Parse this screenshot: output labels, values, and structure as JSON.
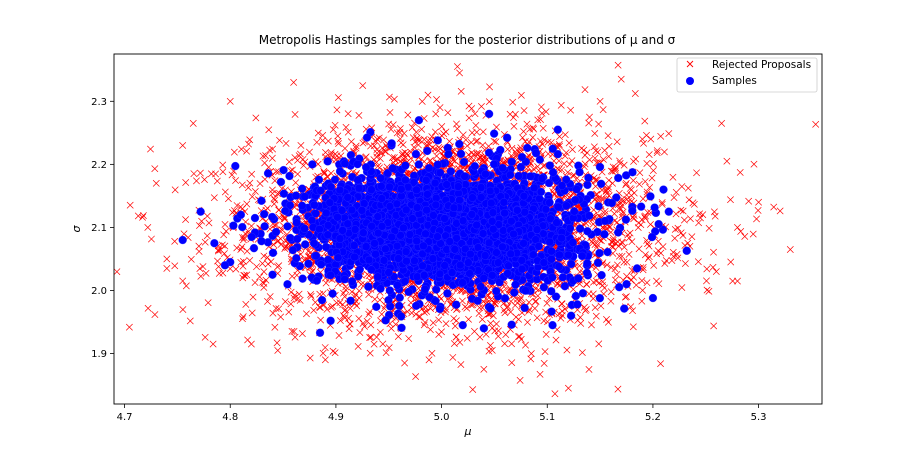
{
  "chart_data": {
    "type": "scatter",
    "title": "Metropolis Hastings samples for the posterior distributions of μ and σ",
    "xlabel": "μ",
    "ylabel": "σ",
    "xlim": [
      4.69,
      5.36
    ],
    "ylim": [
      1.82,
      2.375
    ],
    "xticks": [
      4.7,
      4.8,
      4.9,
      5.0,
      5.1,
      5.2,
      5.3
    ],
    "xtick_labels": [
      "4.7",
      "4.8",
      "4.9",
      "5.0",
      "5.1",
      "5.2",
      "5.3"
    ],
    "yticks": [
      1.9,
      2.0,
      2.1,
      2.2,
      2.3
    ],
    "ytick_labels": [
      "1.9",
      "2.0",
      "2.1",
      "2.2",
      "2.3"
    ],
    "grid": false,
    "legend": "top-right",
    "series": [
      {
        "name": "Rejected Proposals",
        "marker": "x",
        "color": "#ff0000",
        "center": [
          5.01,
          2.1
        ],
        "spread": [
          0.095,
          0.075
        ],
        "count": 4200,
        "outliers": [
          [
            5.33,
            2.065
          ],
          [
            5.3,
            2.14
          ],
          [
            5.28,
            2.015
          ],
          [
            5.265,
            2.265
          ],
          [
            5.27,
            2.205
          ],
          [
            5.28,
            2.1
          ],
          [
            5.26,
            2.03
          ],
          [
            5.235,
            2.07
          ],
          [
            4.722,
            2.1
          ],
          [
            4.73,
            2.17
          ],
          [
            4.74,
            2.035
          ],
          [
            4.765,
            2.265
          ],
          [
            5.015,
            2.355
          ],
          [
            5.017,
            2.345
          ],
          [
            4.86,
            2.33
          ],
          [
            5.17,
            2.335
          ],
          [
            5.12,
            1.845
          ],
          [
            5.04,
            1.875
          ],
          [
            4.89,
            1.89
          ],
          [
            4.965,
            1.885
          ],
          [
            4.82,
            1.915
          ],
          [
            4.845,
            1.905
          ],
          [
            4.755,
            2.23
          ],
          [
            5.245,
            2.115
          ],
          [
            4.74,
            2.05
          ],
          [
            5.19,
            2.24
          ],
          [
            4.8,
            2.3
          ],
          [
            5.15,
            2.3
          ]
        ]
      },
      {
        "name": "Samples",
        "marker": "o",
        "color": "#0000ff",
        "center": [
          5.005,
          2.1
        ],
        "spread": [
          0.062,
          0.045
        ],
        "count": 3200,
        "outliers": [
          [
            4.755,
            2.08
          ],
          [
            4.772,
            2.125
          ],
          [
            4.885,
            1.933
          ],
          [
            4.895,
            1.952
          ],
          [
            5.045,
            2.28
          ],
          [
            5.11,
            2.255
          ],
          [
            5.105,
            1.945
          ],
          [
            5.02,
            1.945
          ],
          [
            5.04,
            1.94
          ],
          [
            5.21,
            2.16
          ],
          [
            5.232,
            2.063
          ],
          [
            5.2,
            1.988
          ],
          [
            5.175,
            2.01
          ],
          [
            4.785,
            2.075
          ],
          [
            4.8,
            2.045
          ],
          [
            4.81,
            2.12
          ],
          [
            4.84,
            2.025
          ],
          [
            5.185,
            2.035
          ],
          [
            5.215,
            2.125
          ],
          [
            4.795,
            2.04
          ]
        ]
      }
    ]
  }
}
